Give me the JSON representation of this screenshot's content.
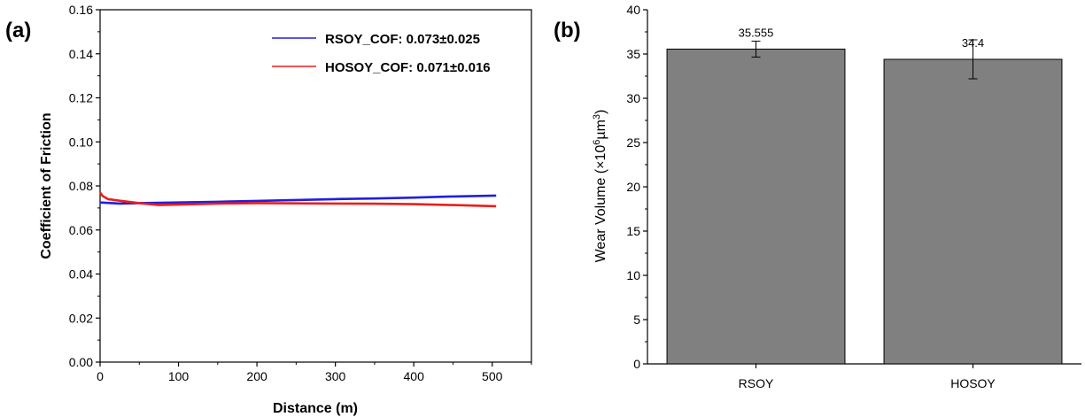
{
  "chart_data": [
    {
      "panel_label": "(a)",
      "type": "line",
      "xlabel": "Distance (m)",
      "ylabel": "Coefficient of Friction",
      "xlim": [
        0,
        550
      ],
      "ylim": [
        0,
        0.16
      ],
      "xticks": [
        0,
        100,
        200,
        300,
        400,
        500
      ],
      "yticks": [
        0.0,
        0.02,
        0.04,
        0.06,
        0.08,
        0.1,
        0.12,
        0.14,
        0.16
      ],
      "grid": false,
      "legend_position": "top-right",
      "series": [
        {
          "name": "RSOY_COF: 0.073±0.025",
          "color": "#1f1fe0",
          "x": [
            0,
            25,
            50,
            100,
            150,
            200,
            250,
            300,
            350,
            400,
            450,
            505
          ],
          "y": [
            0.0725,
            0.072,
            0.0722,
            0.0725,
            0.0728,
            0.0732,
            0.0736,
            0.074,
            0.0743,
            0.0747,
            0.0752,
            0.0756
          ]
        },
        {
          "name": "HOSOY_COF: 0.071±0.016",
          "color": "#ee1c1c",
          "x": [
            0,
            3,
            10,
            25,
            50,
            75,
            100,
            150,
            200,
            250,
            300,
            350,
            400,
            450,
            505
          ],
          "y": [
            0.077,
            0.0755,
            0.074,
            0.0733,
            0.0722,
            0.0713,
            0.0715,
            0.072,
            0.0722,
            0.0721,
            0.072,
            0.0719,
            0.0717,
            0.0713,
            0.0708
          ]
        }
      ]
    },
    {
      "panel_label": "(b)",
      "type": "bar",
      "categories": [
        "RSOY",
        "HOSOY"
      ],
      "values": [
        35.555,
        34.4
      ],
      "value_labels": [
        "35.555",
        "34.4"
      ],
      "errors": [
        0.9,
        2.2
      ],
      "ylabel_main": "Wear Volume (×10",
      "ylabel_sup": "6",
      "ylabel_end": "µm",
      "ylabel_sup2": "3",
      "ylabel_close": ")",
      "ylim": [
        0,
        40
      ],
      "yticks": [
        0,
        5,
        10,
        15,
        20,
        25,
        30,
        35,
        40
      ],
      "bar_color": "#808080",
      "grid": false
    }
  ]
}
